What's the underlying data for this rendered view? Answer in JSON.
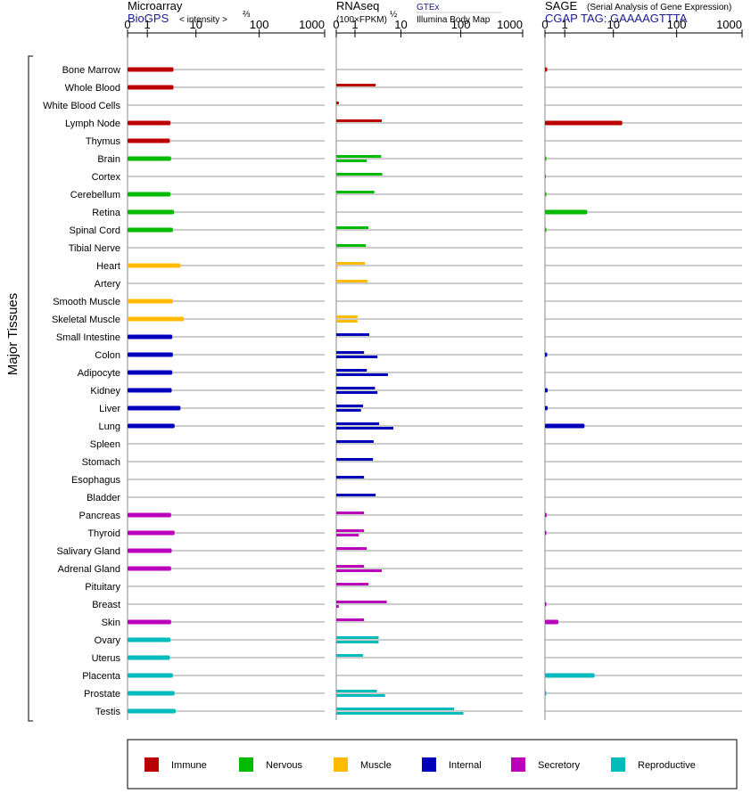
{
  "chart_data": {
    "type": "bar",
    "orientation": "horizontal",
    "y_group_label": "Major Tissues",
    "scale": "log1p",
    "categories": [
      "Bone Marrow",
      "Whole Blood",
      "White Blood Cells",
      "Lymph Node",
      "Thymus",
      "Brain",
      "Cortex",
      "Cerebellum",
      "Retina",
      "Spinal Cord",
      "Tibial Nerve",
      "Heart",
      "Artery",
      "Smooth Muscle",
      "Skeletal Muscle",
      "Small Intestine",
      "Colon",
      "Adipocyte",
      "Kidney",
      "Liver",
      "Lung",
      "Spleen",
      "Stomach",
      "Esophagus",
      "Bladder",
      "Pancreas",
      "Thyroid",
      "Salivary Gland",
      "Adrenal Gland",
      "Pituitary",
      "Breast",
      "Skin",
      "Ovary",
      "Uterus",
      "Placenta",
      "Prostate",
      "Testis"
    ],
    "category_groups": [
      "immune",
      "immune",
      "immune",
      "immune",
      "immune",
      "nervous",
      "nervous",
      "nervous",
      "nervous",
      "nervous",
      "nervous",
      "muscle",
      "muscle",
      "muscle",
      "muscle",
      "internal",
      "internal",
      "internal",
      "internal",
      "internal",
      "internal",
      "internal",
      "internal",
      "internal",
      "internal",
      "secretory",
      "secretory",
      "secretory",
      "secretory",
      "secretory",
      "secretory",
      "secretory",
      "reproductive",
      "reproductive",
      "reproductive",
      "reproductive",
      "reproductive"
    ],
    "group_colors": {
      "immune": "#bb0000",
      "nervous": "#00bb00",
      "muscle": "#ffbb00",
      "internal": "#0000bb",
      "secretory": "#bb00bb",
      "reproductive": "#00bbbb"
    },
    "legend": [
      {
        "key": "immune",
        "label": "Immune"
      },
      {
        "key": "nervous",
        "label": "Nervous"
      },
      {
        "key": "muscle",
        "label": "Muscle"
      },
      {
        "key": "internal",
        "label": "Internal"
      },
      {
        "key": "secretory",
        "label": "Secretory"
      },
      {
        "key": "reproductive",
        "label": "Reproductive"
      }
    ],
    "panels": [
      {
        "id": "microarray",
        "title": "Microarray",
        "subtitle_blue": "BioGPS",
        "subtitle_note": "< intensity >",
        "subtitle_exp": "⅔",
        "ticks": [
          0,
          1,
          10,
          100,
          1000
        ],
        "tick_labels": [
          "0",
          "1",
          "10",
          "100",
          "1000"
        ],
        "xlim": [
          0,
          1000
        ],
        "series": [
          {
            "name": "BioGPS",
            "values": [
              4,
              4,
              null,
              3.5,
              3.4,
              3.6,
              null,
              3.5,
              4.1,
              3.9,
              null,
              5.4,
              null,
              3.9,
              6.2,
              3.8,
              3.9,
              3.8,
              3.7,
              5.4,
              4.2,
              null,
              null,
              null,
              null,
              3.6,
              4.2,
              3.7,
              3.6,
              null,
              null,
              3.6,
              3.5,
              3.4,
              3.9,
              4.2,
              4.4
            ]
          }
        ]
      },
      {
        "id": "rnaseq",
        "title": "RNAseq",
        "subtitle_note": "(100×FPKM)",
        "subtitle_exp": "½",
        "legend_top": "GTEx",
        "legend_bottom": "Illumina Body Map",
        "ticks": [
          0,
          1,
          10,
          100,
          1000
        ],
        "tick_labels": [
          "0",
          "1",
          "10",
          "100",
          "1000"
        ],
        "xlim": [
          0,
          1000
        ],
        "series": [
          {
            "name": "GTEx",
            "values": [
              null,
              3.3,
              0.1,
              4.4,
              null,
              4.3,
              4.5,
              3.1,
              null,
              2.3,
              2.0,
              1.9,
              2.2,
              null,
              1.2,
              2.4,
              1.8,
              2.1,
              3.2,
              1.7,
              3.9,
              3.0,
              2.9,
              1.8,
              3.3,
              1.8,
              1.8,
              2.1,
              1.8,
              2.3,
              5.5,
              1.8,
              3.8,
              1.7,
              null,
              3.5,
              78
            ]
          },
          {
            "name": "Illumina Body Map",
            "values": [
              null,
              null,
              null,
              null,
              null,
              2.1,
              null,
              null,
              null,
              null,
              null,
              0.05,
              null,
              null,
              1.2,
              null,
              3.6,
              5.8,
              3.6,
              1.5,
              7.3,
              null,
              null,
              null,
              null,
              null,
              1.3,
              null,
              4.4,
              null,
              0.1,
              null,
              3.8,
              null,
              null,
              5.1,
              110
            ]
          }
        ]
      },
      {
        "id": "sage",
        "title": "SAGE",
        "subtitle_note": "(Serial Analysis of Gene Expression)",
        "subtitle_blue": "CGAP TAG: GAAAAGTTTA",
        "ticks": [
          0,
          1,
          10,
          100,
          1000
        ],
        "tick_labels": [
          "0",
          "1",
          "10",
          "100",
          "1000"
        ],
        "xlim": [
          0,
          1000
        ],
        "series": [
          {
            "name": "CGAP SAGE",
            "values": [
              0.08,
              null,
              null,
              14,
              null,
              0.05,
              0.03,
              0.05,
              3.4,
              0.05,
              null,
              0.02,
              null,
              null,
              0.02,
              null,
              0.08,
              null,
              0.1,
              0.1,
              3.0,
              null,
              null,
              null,
              null,
              0.06,
              0.05,
              null,
              null,
              null,
              0.05,
              0.6,
              null,
              null,
              4.7,
              0.05,
              null
            ]
          }
        ]
      }
    ]
  }
}
